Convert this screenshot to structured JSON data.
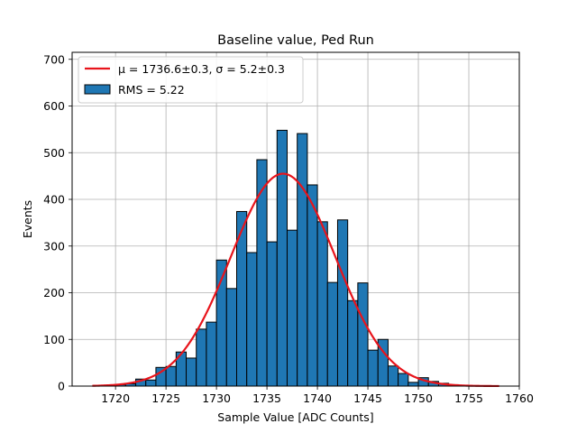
{
  "chart_data": {
    "type": "bar",
    "title": "Baseline value, Ped Run",
    "xlabel": "Sample Value [ADC Counts]",
    "ylabel": "Events",
    "xlim": [
      1715.7,
      1760
    ],
    "ylim": [
      0,
      715
    ],
    "grid": true,
    "legend_position": "top-left",
    "bar_color": "#1f77b4",
    "fit_color": "#e8141b",
    "x_ticks": [
      1720,
      1725,
      1730,
      1735,
      1740,
      1745,
      1750,
      1755,
      1760
    ],
    "y_ticks": [
      0,
      100,
      200,
      300,
      400,
      500,
      600,
      700
    ],
    "bin_width": 1,
    "bins_start": [
      1717,
      1718,
      1719,
      1720,
      1721,
      1722,
      1723,
      1724,
      1725,
      1726,
      1727,
      1728,
      1729,
      1730,
      1731,
      1732,
      1733,
      1734,
      1735,
      1736,
      1737,
      1738,
      1739,
      1740,
      1741,
      1742,
      1743,
      1744,
      1745,
      1746,
      1747,
      1748,
      1749,
      1750,
      1751,
      1752,
      1753,
      1754,
      1755,
      1756
    ],
    "counts": [
      0,
      1,
      2,
      3,
      5,
      15,
      13,
      40,
      42,
      73,
      60,
      122,
      137,
      270,
      209,
      374,
      286,
      485,
      309,
      548,
      334,
      541,
      431,
      352,
      222,
      356,
      183,
      221,
      77,
      100,
      43,
      27,
      8,
      18,
      10,
      6,
      3,
      1,
      1,
      0
    ],
    "series": [
      {
        "name": "RMS = 5.22",
        "kind": "histogram"
      },
      {
        "name": "μ = 1736.6±0.3, σ = 5.2±0.3",
        "kind": "gaussian_fit",
        "mu": 1736.6,
        "sigma": 5.2,
        "amplitude": 455,
        "x_range": [
          1717.7,
          1758
        ]
      }
    ],
    "legend": [
      {
        "label": "μ = 1736.6±0.3, σ = 5.2±0.3",
        "marker": "line"
      },
      {
        "label": "RMS = 5.22",
        "marker": "patch"
      }
    ]
  }
}
